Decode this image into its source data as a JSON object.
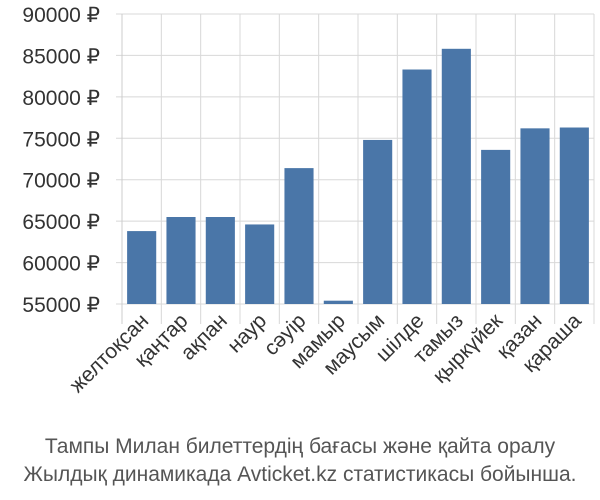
{
  "chart_data": {
    "type": "bar",
    "categories": [
      "желтоқсан",
      "қаңтар",
      "ақпан",
      "наур",
      "сәуір",
      "мамыр",
      "маусым",
      "шілде",
      "тамыз",
      "қыркүйек",
      "қазан",
      "қараша"
    ],
    "values": [
      63800,
      65500,
      65500,
      64600,
      71400,
      55400,
      74800,
      83300,
      85800,
      73600,
      76200,
      76300
    ],
    "ylim": [
      55000,
      90000
    ],
    "yticks": [
      55000,
      60000,
      65000,
      70000,
      75000,
      80000,
      85000,
      90000
    ],
    "ytick_labels": [
      "55000 ₽",
      "60000 ₽",
      "65000 ₽",
      "70000 ₽",
      "75000 ₽",
      "80000 ₽",
      "85000 ₽",
      "90000 ₽"
    ],
    "bar_color": "#4a76a8",
    "grid": true,
    "grid_color": "#d8d8d8"
  },
  "caption": {
    "line1": "Тампы Милан билеттердің бағасы және қайта оралу",
    "line2": "Жылдық динамикада Avticket.kz статистикасы бойынша."
  }
}
